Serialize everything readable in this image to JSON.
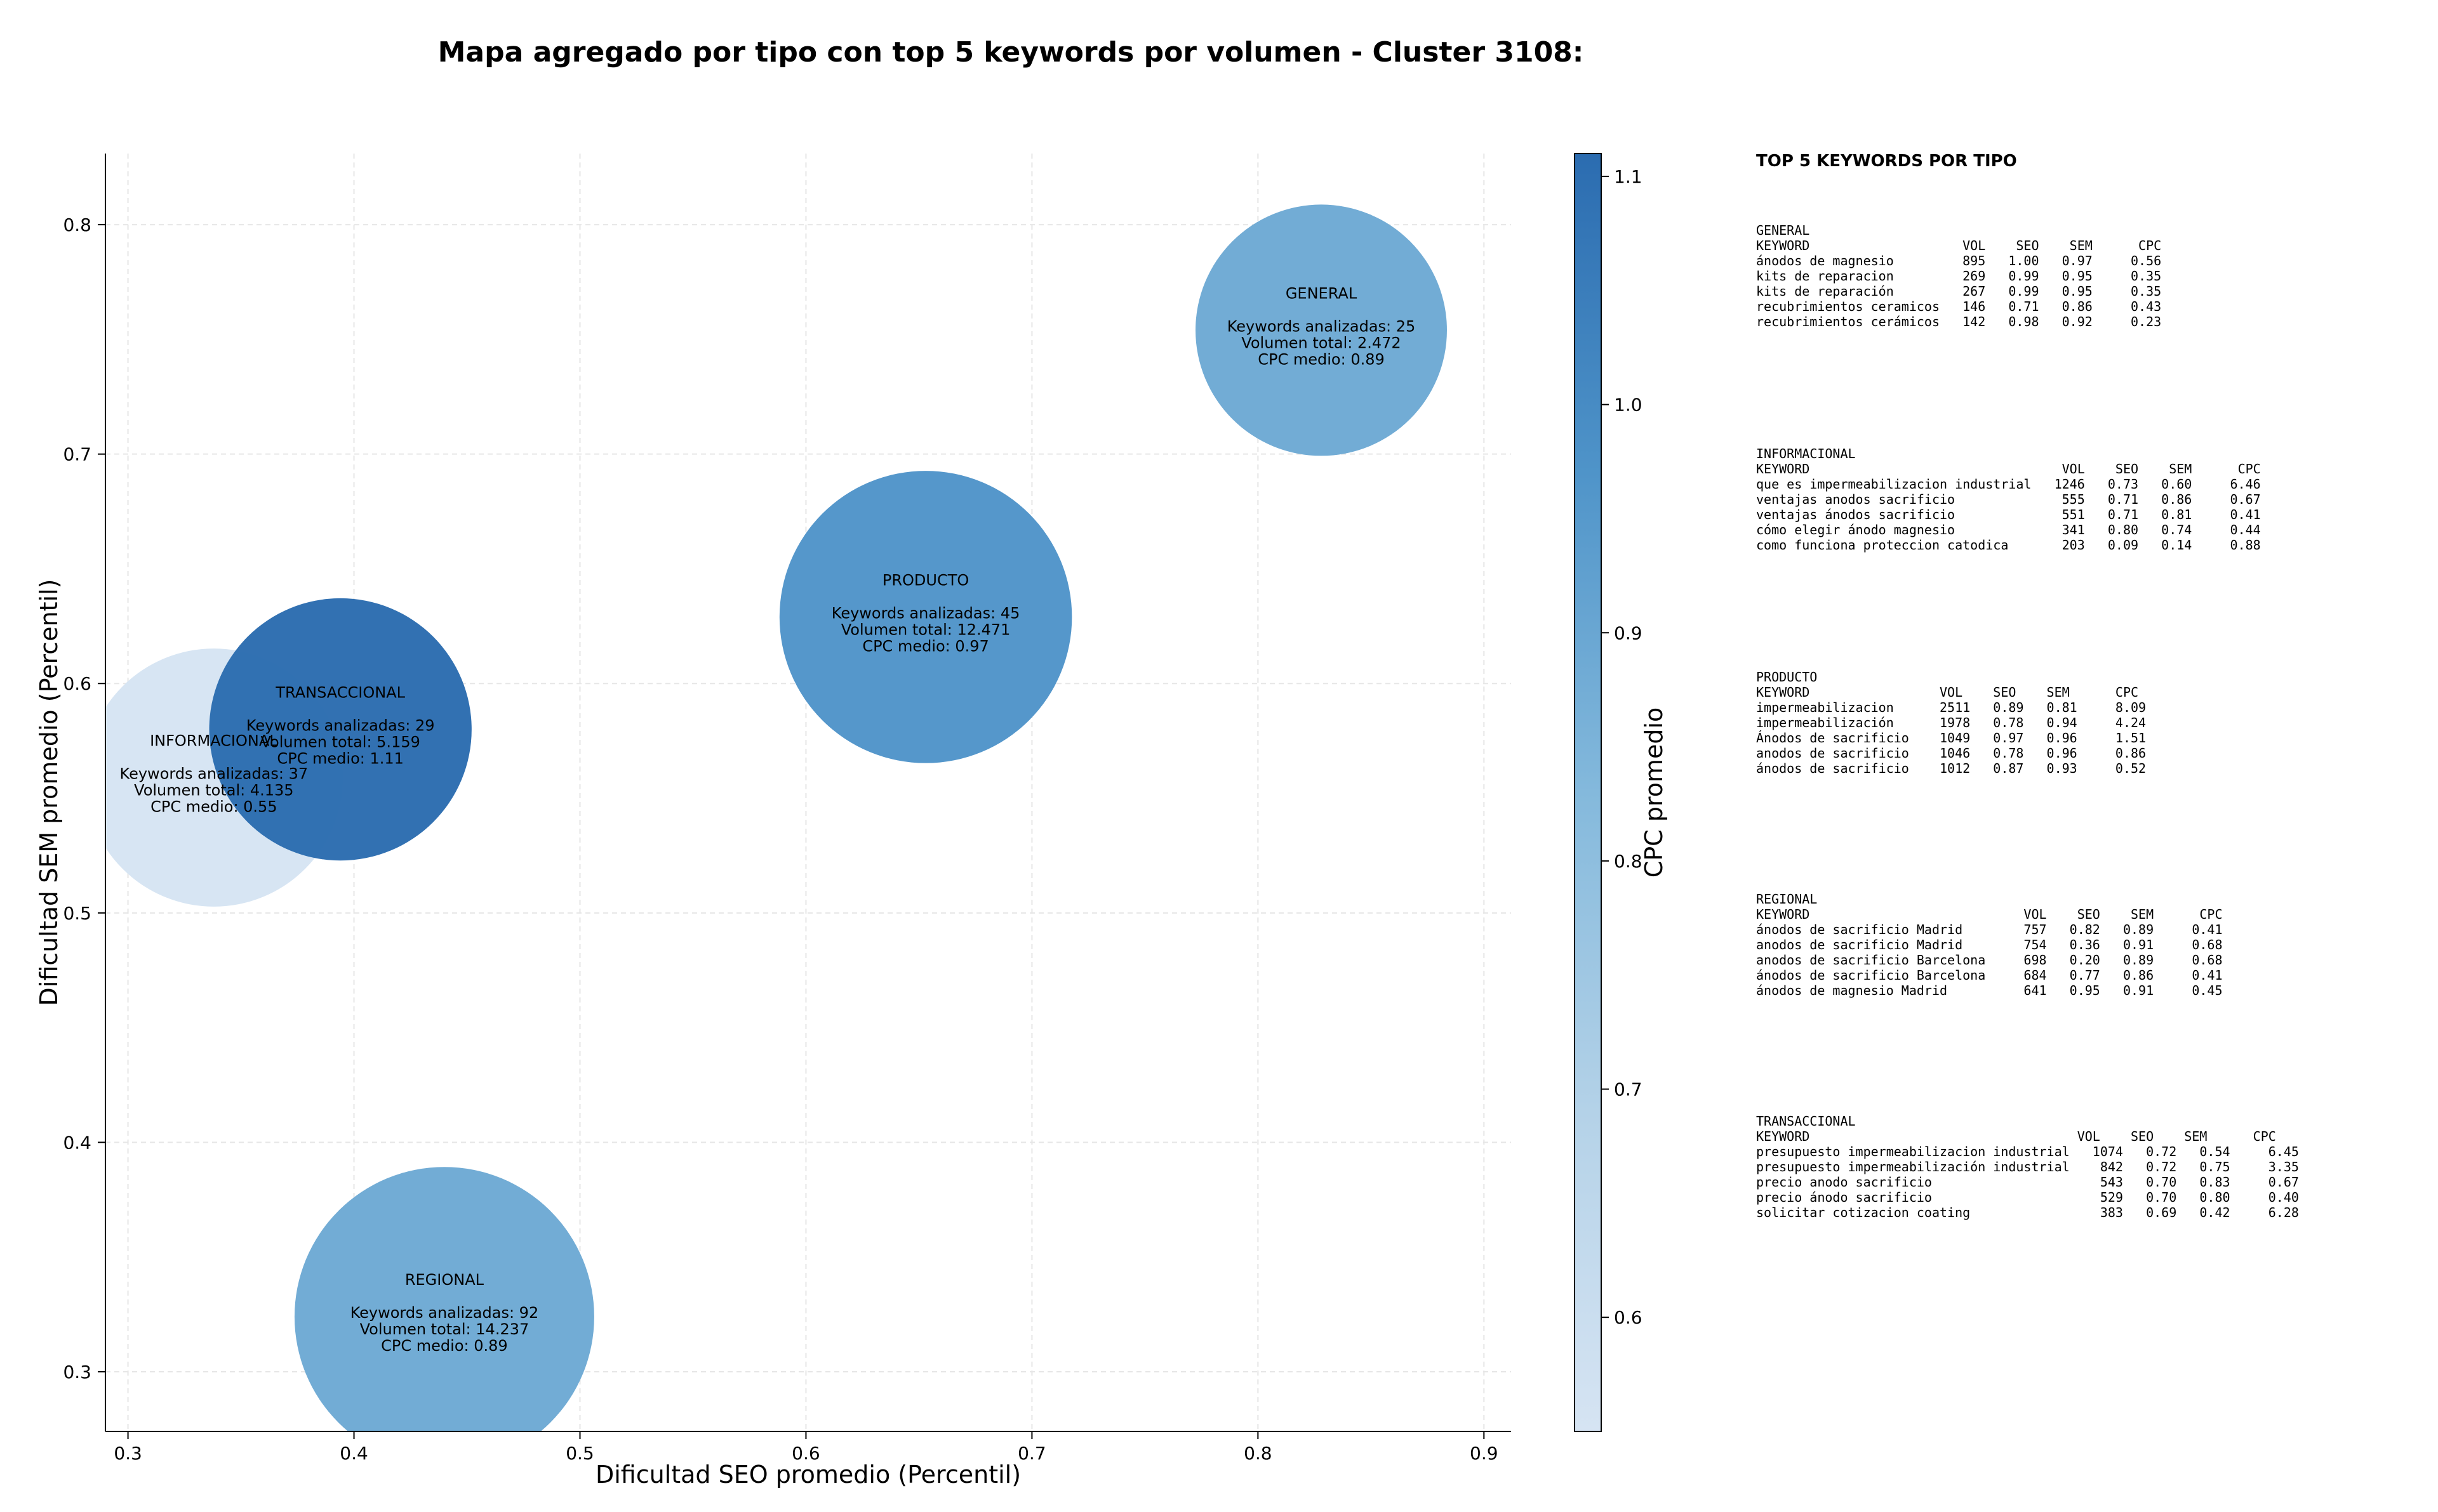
{
  "chart_data": {
    "type": "scatter",
    "title": "Mapa agregado por tipo con top 5 keywords por volumen - Cluster 3108:",
    "xlabel": "Dificultad SEO promedio (Percentil)",
    "ylabel": "Dificultad SEM promedio (Percentil)",
    "xlim": [
      0.29,
      0.912
    ],
    "ylim": [
      0.274,
      0.831
    ],
    "xticks": [
      "0.3",
      "0.4",
      "0.5",
      "0.6",
      "0.7",
      "0.8",
      "0.9"
    ],
    "yticks": [
      "0.3",
      "0.4",
      "0.5",
      "0.6",
      "0.7",
      "0.8"
    ],
    "grid": true,
    "colorbar": {
      "label": "CPC promedio",
      "min": 0.55,
      "max": 1.11,
      "ticks": [
        "0.6",
        "0.7",
        "0.8",
        "0.9",
        "1.0",
        "1.1"
      ],
      "colormap": "Blues"
    },
    "points": [
      {
        "name": "INFORMACIONAL",
        "x": 0.338,
        "y": 0.559,
        "keywords": 37,
        "volume": 4135,
        "cpc": 0.55,
        "lines": [
          "Keywords analizadas: 37",
          "Volumen total: 4.135",
          "CPC medio: 0.55"
        ]
      },
      {
        "name": "TRANSACCIONAL",
        "x": 0.394,
        "y": 0.58,
        "keywords": 29,
        "volume": 5159,
        "cpc": 1.11,
        "lines": [
          "Keywords analizadas: 29",
          "Volumen total: 5.159",
          "CPC medio: 1.11"
        ]
      },
      {
        "name": "PRODUCTO",
        "x": 0.653,
        "y": 0.629,
        "keywords": 45,
        "volume": 12471,
        "cpc": 0.97,
        "lines": [
          "Keywords analizadas: 45",
          "Volumen total: 12.471",
          "CPC medio: 0.97"
        ]
      },
      {
        "name": "GENERAL",
        "x": 0.828,
        "y": 0.754,
        "keywords": 25,
        "volume": 2472,
        "cpc": 0.89,
        "lines": [
          "Keywords analizadas: 25",
          "Volumen total: 2.472",
          "CPC medio: 0.89"
        ]
      },
      {
        "name": "REGIONAL",
        "x": 0.44,
        "y": 0.324,
        "keywords": 92,
        "volume": 14237,
        "cpc": 0.89,
        "lines": [
          "Keywords analizadas: 92",
          "Volumen total: 14.237",
          "CPC medio: 0.89"
        ]
      }
    ]
  },
  "side_panel": {
    "title": "TOP 5 KEYWORDS POR TIPO",
    "groups": [
      {
        "name": "GENERAL",
        "header": "KEYWORD                    VOL    SEO    SEM      CPC",
        "rows": [
          "ánodos de magnesio         895   1.00   0.97     0.56",
          "kits de reparacion         269   0.99   0.95     0.35",
          "kits de reparación         267   0.99   0.95     0.35",
          "recubrimientos ceramicos   146   0.71   0.86     0.43",
          "recubrimientos cerámicos   142   0.98   0.92     0.23"
        ]
      },
      {
        "name": "INFORMACIONAL",
        "header": "KEYWORD                                 VOL    SEO    SEM      CPC",
        "rows": [
          "que es impermeabilizacion industrial   1246   0.73   0.60     6.46",
          "ventajas anodos sacrificio              555   0.71   0.86     0.67",
          "ventajas ánodos sacrificio              551   0.71   0.81     0.41",
          "cómo elegir ánodo magnesio              341   0.80   0.74     0.44",
          "como funciona proteccion catodica       203   0.09   0.14     0.88"
        ]
      },
      {
        "name": "PRODUCTO",
        "header": "KEYWORD                 VOL    SEO    SEM      CPC",
        "rows": [
          "impermeabilizacion      2511   0.89   0.81     8.09",
          "impermeabilización      1978   0.78   0.94     4.24",
          "Ánodos de sacrificio    1049   0.97   0.96     1.51",
          "anodos de sacrificio    1046   0.78   0.96     0.86",
          "ánodos de sacrificio    1012   0.87   0.93     0.52"
        ]
      },
      {
        "name": "REGIONAL",
        "header": "KEYWORD                            VOL    SEO    SEM      CPC",
        "rows": [
          "ánodos de sacrificio Madrid        757   0.82   0.89     0.41",
          "anodos de sacrificio Madrid        754   0.36   0.91     0.68",
          "anodos de sacrificio Barcelona     698   0.20   0.89     0.68",
          "ánodos de sacrificio Barcelona     684   0.77   0.86     0.41",
          "ánodos de magnesio Madrid          641   0.95   0.91     0.45"
        ]
      },
      {
        "name": "TRANSACCIONAL",
        "header": "KEYWORD                                   VOL    SEO    SEM      CPC",
        "rows": [
          "presupuesto impermeabilizacion industrial   1074   0.72   0.54     6.45",
          "presupuesto impermeabilización industrial    842   0.72   0.75     3.35",
          "precio anodo sacrificio                      543   0.70   0.83     0.67",
          "precio ánodo sacrificio                      529   0.70   0.80     0.40",
          "solicitar cotizacion coating                 383   0.69   0.42     6.28"
        ]
      }
    ]
  }
}
